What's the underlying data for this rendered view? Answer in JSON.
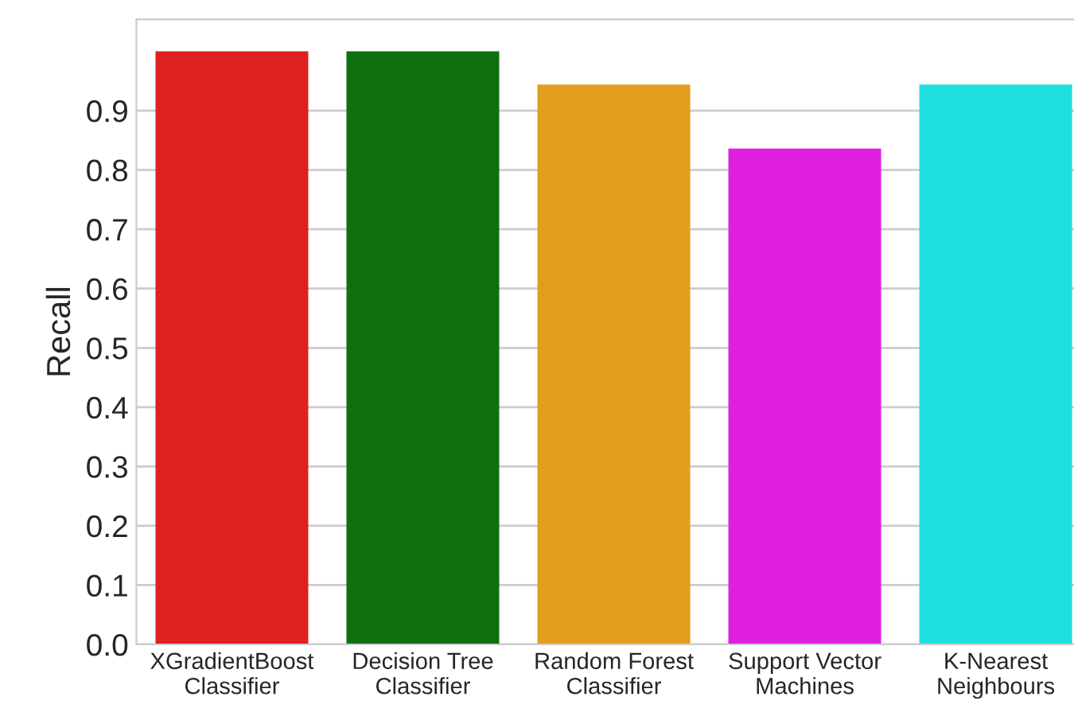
{
  "chart_data": {
    "type": "bar",
    "ylabel": "Recall",
    "categories": [
      "XGradientBoost\nClassifier",
      "Decision Tree\nClassifier",
      "Random Forest\nClassifier",
      "Support Vector\nMachines",
      "K-Nearest\nNeighbours"
    ],
    "values": [
      1.0,
      1.0,
      0.944,
      0.836,
      0.944
    ],
    "colors": [
      "#df2020",
      "#107010",
      "#e19d1e",
      "#df20df",
      "#20dfdf"
    ],
    "ylim": [
      0,
      1.054
    ],
    "yticks": [
      {
        "value": 0,
        "label": "0.0"
      },
      0.1,
      0.2,
      0.3,
      0.4,
      0.5,
      0.6,
      0.7,
      0.8,
      0.9
    ],
    "grid": "y"
  }
}
